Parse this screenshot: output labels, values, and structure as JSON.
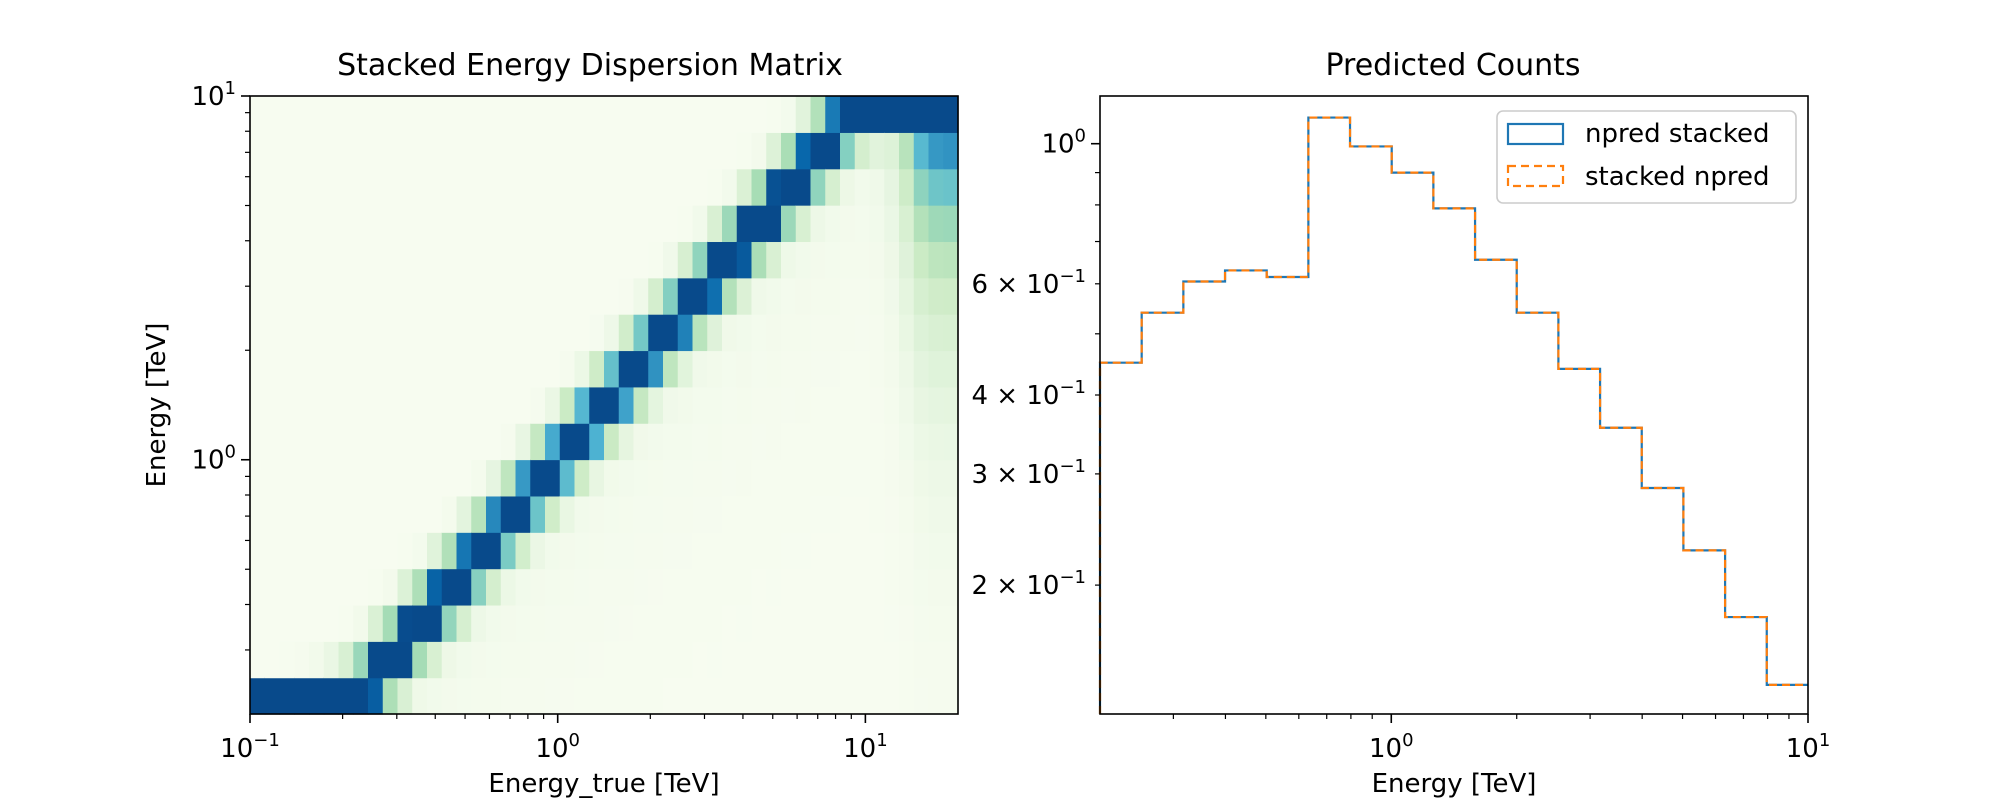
{
  "chart_data": [
    {
      "type": "heatmap",
      "title": "Stacked Energy Dispersion Matrix",
      "xlabel": "Energy_true [TeV]",
      "ylabel": "Energy [TeV]",
      "x_scale": "log",
      "y_scale": "log",
      "xlim": [
        0.1,
        20
      ],
      "ylim": [
        0.2,
        10
      ],
      "x_ticks": [
        {
          "value": 0.1,
          "base": "10",
          "exp": "−1"
        },
        {
          "value": 1,
          "base": "10",
          "exp": "0"
        },
        {
          "value": 10,
          "base": "10",
          "exp": "1"
        }
      ],
      "y_ticks": [
        {
          "value": 1,
          "base": "10",
          "exp": "0"
        },
        {
          "value": 10,
          "base": "10",
          "exp": "1"
        }
      ],
      "colormap": "GnBu",
      "true_bins": 48,
      "reco_bins": 17,
      "dispersion_ridge": {
        "center_factor": 1.0,
        "log10_width": 0.072,
        "tail": "right"
      },
      "grid": false
    },
    {
      "type": "line",
      "title": "Predicted Counts",
      "xlabel": "Energy [TeV]",
      "ylabel": "",
      "x_scale": "log",
      "y_scale": "log",
      "xlim": [
        0.2,
        10
      ],
      "ylim": [
        0.125,
        1.19
      ],
      "x_ticks": [
        {
          "value": 1,
          "base": "10",
          "exp": "0"
        },
        {
          "value": 10,
          "base": "10",
          "exp": "1"
        }
      ],
      "y_ticks": [
        {
          "value": 1,
          "label": "10",
          "exp": "0"
        },
        {
          "value": 0.6,
          "label": "6 × 10",
          "exp": "−1"
        },
        {
          "value": 0.4,
          "label": "4 × 10",
          "exp": "−1"
        },
        {
          "value": 0.3,
          "label": "3 × 10",
          "exp": "−1"
        },
        {
          "value": 0.2,
          "label": "2 × 10",
          "exp": "−1"
        }
      ],
      "bin_edges": [
        0.2,
        0.2518,
        0.317,
        0.3991,
        0.5024,
        0.6325,
        0.7962,
        1.0024,
        1.2619,
        1.5887,
        2.0,
        2.5179,
        3.1698,
        3.9905,
        5.0238,
        6.3246,
        7.9621,
        10.0
      ],
      "series": [
        {
          "name": "npred stacked",
          "color": "#1f77b4",
          "style": "solid",
          "values": [
            0.45,
            0.54,
            0.605,
            0.63,
            0.615,
            1.1,
            0.99,
            0.9,
            0.79,
            0.655,
            0.54,
            0.44,
            0.355,
            0.285,
            0.227,
            0.178,
            0.139
          ]
        },
        {
          "name": "stacked npred",
          "color": "#ff7f0e",
          "style": "dashed",
          "values": [
            0.45,
            0.54,
            0.605,
            0.63,
            0.615,
            1.1,
            0.99,
            0.9,
            0.79,
            0.655,
            0.54,
            0.44,
            0.355,
            0.285,
            0.227,
            0.178,
            0.139
          ]
        }
      ],
      "legend_position": "top-right",
      "grid": false
    }
  ]
}
